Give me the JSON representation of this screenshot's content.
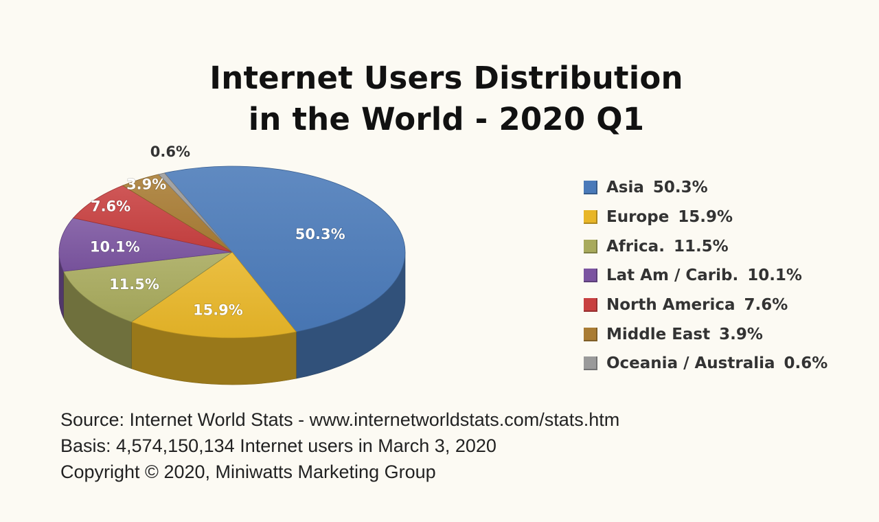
{
  "chart_data": {
    "type": "pie",
    "title": [
      "Internet Users Distribution",
      "in the World - 2020 Q1"
    ],
    "unit": "%",
    "slices": [
      {
        "name": "Asia",
        "legend": "Asia",
        "label": "50.3%",
        "value": 50.3,
        "color": "#4a7ab9"
      },
      {
        "name": "Europe",
        "legend": "Europe",
        "label": "15.9%",
        "value": 15.9,
        "color": "#e8b628"
      },
      {
        "name": "Africa",
        "legend": "Africa.",
        "label": "11.5%",
        "value": 11.5,
        "color": "#a8aa5c"
      },
      {
        "name": "Lat Am / Carib.",
        "legend": "Lat Am / Carib.",
        "label": "10.1%",
        "value": 10.1,
        "color": "#7b54a0"
      },
      {
        "name": "North America",
        "legend": "North America",
        "label": "7.6%",
        "value": 7.6,
        "color": "#c84040"
      },
      {
        "name": "Middle East",
        "legend": "Middle East",
        "label": "3.9%",
        "value": 3.9,
        "color": "#a97c34"
      },
      {
        "name": "Oceania / Australia",
        "legend": "Oceania / Australia",
        "label": "0.6%",
        "value": 0.6,
        "color": "#9a9a9a"
      }
    ],
    "legend_position": "right"
  },
  "notes": {
    "source": "Source: Internet World Stats -  www.internetworldstats.com/stats.htm",
    "basis": "Basis: 4,574,150,134 Internet users in March 3, 2020",
    "copyright": "Copyright © 2020, Miniwatts Marketing Group"
  }
}
